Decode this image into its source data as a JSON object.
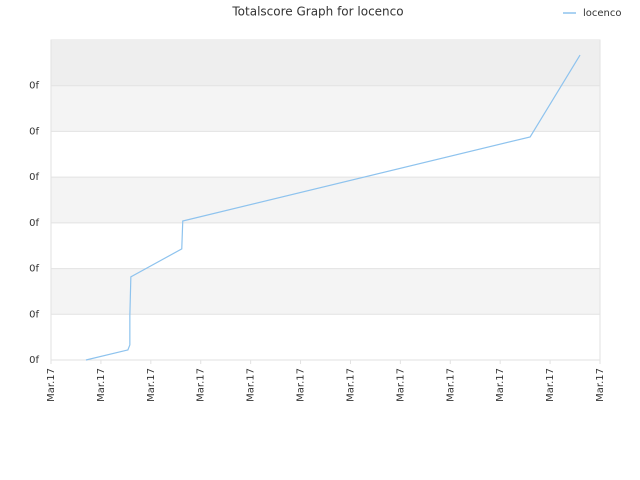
{
  "chart_data": {
    "type": "line",
    "title": "Totalscore Graph for locenco",
    "x": [
      0.7,
      1.54,
      1.58,
      1.58,
      1.6,
      2.62,
      2.64,
      9.6,
      10.6
    ],
    "series": [
      {
        "name": "locenco",
        "color": "#8ec3ee",
        "values": [
          0,
          0.22,
          0.33,
          0.98,
          1.82,
          2.43,
          3.04,
          4.88,
          6.67
        ]
      }
    ],
    "xlim": [
      0,
      11
    ],
    "xticks": [
      {
        "value": 0,
        "label": "Mar.17"
      },
      {
        "value": 1,
        "label": "Mar.17"
      },
      {
        "value": 2,
        "label": "Mar.17"
      },
      {
        "value": 3,
        "label": "Mar.17"
      },
      {
        "value": 4,
        "label": "Mar.17"
      },
      {
        "value": 5,
        "label": "Mar.17"
      },
      {
        "value": 6,
        "label": "Mar.17"
      },
      {
        "value": 7,
        "label": "Mar.17"
      },
      {
        "value": 8,
        "label": "Mar.17"
      },
      {
        "value": 9,
        "label": "Mar.17"
      },
      {
        "value": 10,
        "label": "Mar.17"
      },
      {
        "value": 11,
        "label": "Mar.17"
      }
    ],
    "ylim": [
      0,
      7
    ],
    "yticks": [
      {
        "value": 0,
        "label": "0f"
      },
      {
        "value": 1,
        "label": "0f"
      },
      {
        "value": 2,
        "label": "0f"
      },
      {
        "value": 3,
        "label": "0f"
      },
      {
        "value": 4,
        "label": "0f"
      },
      {
        "value": 5,
        "label": "0f"
      },
      {
        "value": 6,
        "label": "0f"
      }
    ],
    "grid": true,
    "legend": "top-right"
  }
}
